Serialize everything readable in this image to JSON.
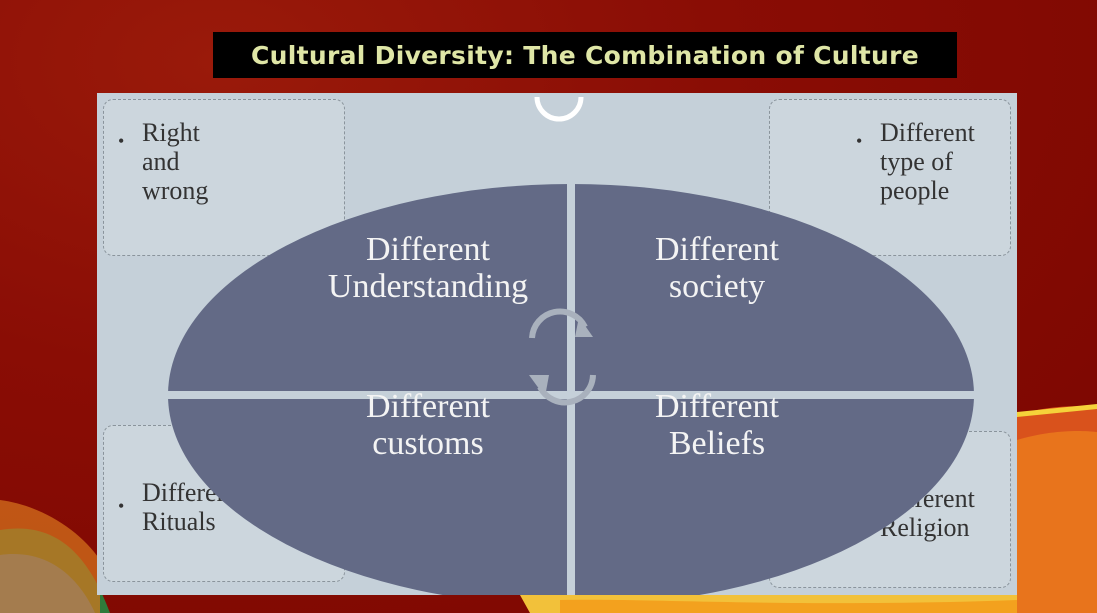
{
  "title": "Cultural Diversity: The Combination of Culture",
  "corners": {
    "top_left": "Right and wrong",
    "top_right": "Different type of people",
    "bottom_left": "Different Rituals",
    "bottom_right": "Different Religion"
  },
  "quadrants": {
    "top_left": {
      "line1": "Different",
      "line2": "Understanding"
    },
    "top_right": {
      "line1": "Different",
      "line2": "society"
    },
    "bottom_left": {
      "line1": "Different",
      "line2": "customs"
    },
    "bottom_right": {
      "line1": "Different",
      "line2": "Beliefs"
    }
  },
  "colors": {
    "background": "#8a0d05",
    "title_bg": "#000000",
    "title_text": "#dfe6a6",
    "panel": "#c5d0d9",
    "ellipse": "#636a86"
  },
  "icons": [
    "cycle-arrows-icon"
  ]
}
